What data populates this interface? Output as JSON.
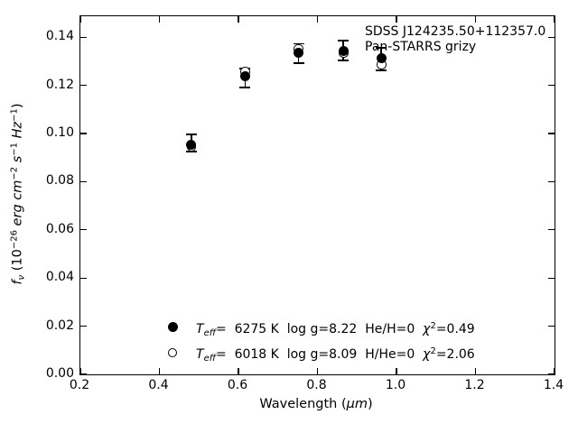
{
  "figure": {
    "background": "#ffffff",
    "foreground": "#000000"
  },
  "annotation": {
    "line1": "SDSS J124235.50+112357.0",
    "line2": "Pan-STARRS grizy"
  },
  "axes": {
    "x_tick_labels": [
      "0.2",
      "0.4",
      "0.6",
      "0.8",
      "1.0",
      "1.2",
      "1.4"
    ],
    "y_tick_labels": [
      "0.00",
      "0.02",
      "0.04",
      "0.06",
      "0.08",
      "0.10",
      "0.12",
      "0.14"
    ],
    "xlabel_rich": [
      {
        "t": "Wavelength ("
      },
      {
        "t": "μm",
        "i": true
      },
      {
        "t": ")"
      }
    ],
    "ylabel_rich": [
      {
        "t": "f",
        "i": true
      },
      {
        "t": "ν",
        "i": true,
        "sub": true
      },
      {
        "t": " (10"
      },
      {
        "t": "−26",
        "sup": true
      },
      {
        "t": " "
      },
      {
        "t": "erg cm",
        "i": true
      },
      {
        "t": "−2",
        "sup": true
      },
      {
        "t": " "
      },
      {
        "t": "s",
        "i": true
      },
      {
        "t": "−1",
        "sup": true
      },
      {
        "t": " "
      },
      {
        "t": "Hz",
        "i": true
      },
      {
        "t": "−1",
        "sup": true
      },
      {
        "t": ")"
      }
    ]
  },
  "legend": {
    "rows": [
      {
        "marker": "filled-circle",
        "segments": [
          {
            "t": "T",
            "i": true
          },
          {
            "t": "eff",
            "i": true,
            "sub": true
          },
          {
            "t": "=  6275 K  log g=8.22  He/H=0  "
          },
          {
            "t": "χ",
            "i": true
          },
          {
            "t": "2",
            "sup": true
          },
          {
            "t": "=0.49"
          }
        ]
      },
      {
        "marker": "open-circle",
        "segments": [
          {
            "t": "T",
            "i": true
          },
          {
            "t": "eff",
            "i": true,
            "sub": true
          },
          {
            "t": "=  6018 K  log g=8.09  H/He=0  "
          },
          {
            "t": "χ",
            "i": true
          },
          {
            "t": "2",
            "sup": true
          },
          {
            "t": "=2.06"
          }
        ]
      }
    ]
  },
  "chart_data": {
    "type": "scatter",
    "title": "",
    "xlabel": "Wavelength (μm)",
    "ylabel": "f_ν (10^−26 erg cm^−2 s^−1 Hz^−1)",
    "xlim": [
      0.2,
      1.4
    ],
    "ylim": [
      0.0,
      0.1487
    ],
    "x_ticks": [
      0.2,
      0.4,
      0.6,
      0.8,
      1.0,
      1.2,
      1.4
    ],
    "y_ticks": [
      0.0,
      0.02,
      0.04,
      0.06,
      0.08,
      0.1,
      0.12,
      0.14
    ],
    "grid": false,
    "tick_direction": "in",
    "annotation": [
      "SDSS J124235.50+112357.0",
      "Pan-STARRS grizy"
    ],
    "bands": [
      "g",
      "r",
      "i",
      "z",
      "y"
    ],
    "x": [
      0.481,
      0.617,
      0.752,
      0.866,
      0.962
    ],
    "series": [
      {
        "name": "Teff= 6275 K  log g=8.22  He/H=0  χ2=0.49",
        "marker": "filled-circle",
        "values": [
          0.0955,
          0.1237,
          0.1337,
          0.1341,
          0.1313
        ]
      },
      {
        "name": "Teff= 6018 K  log g=8.09  H/He=0  χ2=2.06",
        "marker": "open-circle",
        "values": [
          0.0943,
          0.1257,
          0.1352,
          0.1335,
          0.1286
        ]
      }
    ],
    "observed_error_bars": {
      "center": [
        0.096,
        0.123,
        0.1333,
        0.1345,
        0.1309
      ],
      "err": [
        0.0035,
        0.004,
        0.004,
        0.0042,
        0.0047
      ]
    },
    "legend_position": "lower center-left",
    "marker_color": "#000000"
  }
}
